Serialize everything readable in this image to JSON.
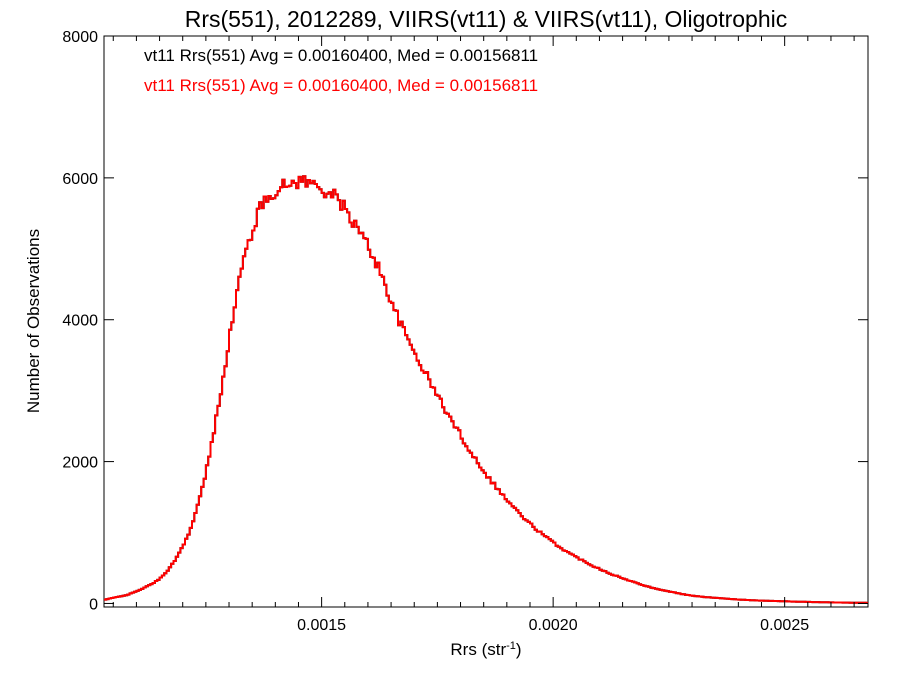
{
  "chart_data": {
    "type": "histogram",
    "title": "Rrs(551), 2012289, VIIRS(vt11) & VIIRS(vt11), Oligotrophic",
    "xlabel": "Rrs (str",
    "xlabel_superscript": "-1",
    "xlabel_suffix": ")",
    "ylabel": "Number of Observations",
    "xlim": [
      0.00103,
      0.00268
    ],
    "ylim": [
      -50,
      8000
    ],
    "xticks": [
      0.0015,
      0.002,
      0.0025
    ],
    "xtick_labels": [
      "0.0015",
      "0.0020",
      "0.0025"
    ],
    "yticks": [
      0,
      2000,
      4000,
      6000,
      8000
    ],
    "ytick_labels": [
      "0",
      "2000",
      "4000",
      "6000",
      "8000"
    ],
    "bin_width": 5e-06,
    "legend": [
      {
        "text": "vt11 Rrs(551) Avg = 0.00160400, Med = 0.00156811",
        "color": "#000000"
      },
      {
        "text": "vt11 Rrs(551) Avg = 0.00160400, Med = 0.00156811",
        "color": "#ff0000"
      }
    ],
    "series": [
      {
        "color": "#000000",
        "x": [
          0.00103,
          0.00105,
          0.00108,
          0.0011,
          0.00112,
          0.00114,
          0.00116,
          0.00118,
          0.0012,
          0.00122,
          0.00124,
          0.00126,
          0.00128,
          0.0013,
          0.00132,
          0.00134,
          0.00136,
          0.00137,
          0.00138,
          0.00139,
          0.0014,
          0.00141,
          0.00142,
          0.00143,
          0.00144,
          0.00145,
          0.00146,
          0.00147,
          0.00148,
          0.00149,
          0.0015,
          0.00151,
          0.00152,
          0.00153,
          0.00154,
          0.00155,
          0.00156,
          0.00158,
          0.0016,
          0.00162,
          0.00164,
          0.00166,
          0.00168,
          0.0017,
          0.00172,
          0.00174,
          0.00176,
          0.00178,
          0.0018,
          0.00182,
          0.00184,
          0.00186,
          0.00188,
          0.0019,
          0.00192,
          0.00194,
          0.00196,
          0.00198,
          0.002,
          0.00202,
          0.00204,
          0.00206,
          0.00208,
          0.0021,
          0.00212,
          0.00214,
          0.00216,
          0.00218,
          0.0022,
          0.00222,
          0.00225,
          0.00228,
          0.0023,
          0.00232,
          0.00235,
          0.00238,
          0.0024,
          0.00243,
          0.00246,
          0.0025,
          0.00253,
          0.00256,
          0.0026,
          0.00263,
          0.00266,
          0.00268
        ],
        "y": [
          50,
          80,
          120,
          170,
          230,
          300,
          400,
          580,
          800,
          1100,
          1550,
          2150,
          2900,
          3700,
          4500,
          5050,
          5450,
          5600,
          5700,
          5780,
          5820,
          5850,
          5880,
          5910,
          5940,
          5960,
          5960,
          5940,
          5910,
          5880,
          5850,
          5820,
          5780,
          5720,
          5650,
          5570,
          5470,
          5250,
          5050,
          4780,
          4450,
          4100,
          3800,
          3550,
          3300,
          3050,
          2820,
          2580,
          2380,
          2150,
          1970,
          1780,
          1620,
          1460,
          1320,
          1180,
          1070,
          960,
          860,
          770,
          690,
          620,
          550,
          490,
          430,
          380,
          330,
          290,
          250,
          210,
          170,
          130,
          110,
          95,
          80,
          65,
          55,
          45,
          38,
          30,
          25,
          20,
          15,
          12,
          10,
          8
        ]
      },
      {
        "color": "#ff0000",
        "x": [
          0.00103,
          0.00105,
          0.00108,
          0.0011,
          0.00112,
          0.00114,
          0.00116,
          0.00118,
          0.0012,
          0.00122,
          0.00124,
          0.00126,
          0.00128,
          0.0013,
          0.00132,
          0.00134,
          0.00136,
          0.00137,
          0.00138,
          0.00139,
          0.0014,
          0.00141,
          0.00142,
          0.00143,
          0.00144,
          0.00145,
          0.00146,
          0.00147,
          0.00148,
          0.00149,
          0.0015,
          0.00151,
          0.00152,
          0.00153,
          0.00154,
          0.00155,
          0.00156,
          0.00158,
          0.0016,
          0.00162,
          0.00164,
          0.00166,
          0.00168,
          0.0017,
          0.00172,
          0.00174,
          0.00176,
          0.00178,
          0.0018,
          0.00182,
          0.00184,
          0.00186,
          0.00188,
          0.0019,
          0.00192,
          0.00194,
          0.00196,
          0.00198,
          0.002,
          0.00202,
          0.00204,
          0.00206,
          0.00208,
          0.0021,
          0.00212,
          0.00214,
          0.00216,
          0.00218,
          0.0022,
          0.00222,
          0.00225,
          0.00228,
          0.0023,
          0.00232,
          0.00235,
          0.00238,
          0.0024,
          0.00243,
          0.00246,
          0.0025,
          0.00253,
          0.00256,
          0.0026,
          0.00263,
          0.00266,
          0.00268
        ],
        "y": [
          50,
          80,
          120,
          170,
          230,
          300,
          400,
          580,
          800,
          1100,
          1550,
          2150,
          2900,
          3700,
          4500,
          5050,
          5450,
          5600,
          5700,
          5780,
          5820,
          5850,
          5880,
          5910,
          5940,
          5960,
          5960,
          5940,
          5910,
          5880,
          5850,
          5820,
          5780,
          5720,
          5650,
          5570,
          5470,
          5250,
          5050,
          4780,
          4450,
          4100,
          3800,
          3550,
          3300,
          3050,
          2820,
          2580,
          2380,
          2150,
          1970,
          1780,
          1620,
          1460,
          1320,
          1180,
          1070,
          960,
          860,
          770,
          690,
          620,
          550,
          490,
          430,
          380,
          330,
          290,
          250,
          210,
          170,
          130,
          110,
          95,
          80,
          65,
          55,
          45,
          38,
          30,
          25,
          20,
          15,
          12,
          10,
          8
        ]
      }
    ]
  }
}
